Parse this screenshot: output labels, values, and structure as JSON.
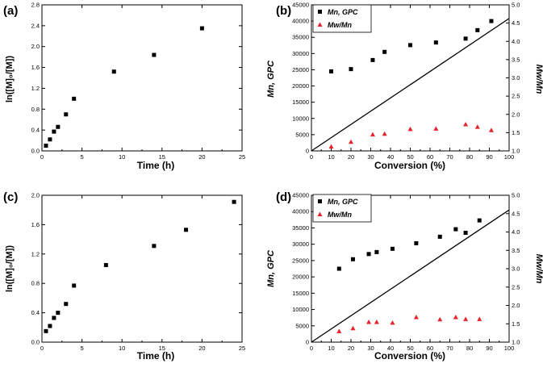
{
  "colors": {
    "square": "#000000",
    "triangle": "#e8212b",
    "line": "#000000",
    "axis": "#000000"
  },
  "chart_data": [
    {
      "type": "scatter",
      "panel_label": "(a)",
      "xlabel": "Time (h)",
      "ylabel": "ln([M]₀/[M])",
      "xlim": [
        0,
        25
      ],
      "ylim": [
        0,
        2.8
      ],
      "xticks": [
        "0",
        "5",
        "10",
        "15",
        "20",
        "25"
      ],
      "yticks": [
        "0.0",
        "0.4",
        "0.8",
        "1.2",
        "1.6",
        "2.0",
        "2.4",
        "2.8"
      ],
      "x": [
        0.5,
        1,
        1.5,
        2,
        3,
        4,
        9,
        14,
        20
      ],
      "y": [
        0.1,
        0.22,
        0.37,
        0.46,
        0.7,
        1.0,
        1.52,
        1.84,
        2.35
      ]
    },
    {
      "type": "scatter",
      "panel_label": "(b)",
      "xlabel": "Conversion (%)",
      "ylabel": "Mn, GPC",
      "y2label": "Mw/Mn",
      "xlim": [
        0,
        100
      ],
      "ylim": [
        0,
        45000
      ],
      "y2lim": [
        1.0,
        5.0
      ],
      "xticks": [
        "0",
        "10",
        "20",
        "30",
        "40",
        "50",
        "60",
        "70",
        "80",
        "90",
        "100"
      ],
      "yticks": [
        "0",
        "5000",
        "10000",
        "15000",
        "20000",
        "25000",
        "30000",
        "35000",
        "40000",
        "45000"
      ],
      "y2ticks": [
        "1.0",
        "1.5",
        "2.0",
        "2.5",
        "3.0",
        "3.5",
        "4.0",
        "4.5",
        "5.0"
      ],
      "legend": [
        "Mn, GPC",
        "Mw/Mn"
      ],
      "series": [
        {
          "name": "Mn, GPC",
          "axis": "left",
          "marker": "square",
          "x": [
            10,
            20,
            31,
            37,
            50,
            63,
            78,
            84,
            91
          ],
          "y": [
            24500,
            25200,
            28000,
            30500,
            32600,
            33400,
            34600,
            37200,
            40000
          ]
        },
        {
          "name": "Mw/Mn",
          "axis": "right",
          "marker": "triangle",
          "x": [
            10,
            20,
            31,
            37,
            50,
            63,
            78,
            84,
            91
          ],
          "y": [
            1.12,
            1.25,
            1.45,
            1.47,
            1.6,
            1.61,
            1.73,
            1.66,
            1.57
          ]
        },
        {
          "name": "theoretical",
          "axis": "left",
          "marker": "line",
          "x": [
            0,
            100
          ],
          "y": [
            0,
            40800
          ]
        }
      ]
    },
    {
      "type": "scatter",
      "panel_label": "(c)",
      "xlabel": "Time (h)",
      "ylabel": "ln([M]₀/[M])",
      "xlim": [
        0,
        25
      ],
      "ylim": [
        0,
        2.0
      ],
      "xticks": [
        "0",
        "5",
        "10",
        "15",
        "20",
        "25"
      ],
      "yticks": [
        "0.0",
        "0.4",
        "0.8",
        "1.2",
        "1.6",
        "2.0"
      ],
      "x": [
        0.5,
        1,
        1.5,
        2,
        3,
        4,
        8,
        14,
        18,
        24
      ],
      "y": [
        0.15,
        0.22,
        0.33,
        0.4,
        0.52,
        0.77,
        1.05,
        1.31,
        1.53,
        1.91
      ]
    },
    {
      "type": "scatter",
      "panel_label": "(d)",
      "xlabel": "Conversion (%)",
      "ylabel": "Mn, GPC",
      "y2label": "Mw/Mn",
      "xlim": [
        0,
        100
      ],
      "ylim": [
        0,
        45000
      ],
      "y2lim": [
        1.0,
        5.0
      ],
      "xticks": [
        "0",
        "10",
        "20",
        "30",
        "40",
        "50",
        "60",
        "70",
        "80",
        "90",
        "100"
      ],
      "yticks": [
        "0",
        "5000",
        "10000",
        "15000",
        "20000",
        "25000",
        "30000",
        "35000",
        "40000",
        "45000"
      ],
      "y2ticks": [
        "1.0",
        "1.5",
        "2.0",
        "2.5",
        "3.0",
        "3.5",
        "4.0",
        "4.5",
        "5.0"
      ],
      "legend": [
        "Mn, GPC",
        "Mw/Mn"
      ],
      "series": [
        {
          "name": "Mn, GPC",
          "axis": "left",
          "marker": "square",
          "x": [
            14,
            21,
            29,
            33,
            41,
            53,
            65,
            73,
            78,
            85
          ],
          "y": [
            22500,
            25400,
            27000,
            27600,
            28600,
            30300,
            32300,
            34600,
            33500,
            37300
          ]
        },
        {
          "name": "Mw/Mn",
          "axis": "right",
          "marker": "triangle",
          "x": [
            14,
            21,
            29,
            33,
            41,
            53,
            65,
            73,
            78,
            85
          ],
          "y": [
            1.3,
            1.38,
            1.55,
            1.55,
            1.53,
            1.68,
            1.62,
            1.68,
            1.63,
            1.63
          ]
        },
        {
          "name": "theoretical",
          "axis": "left",
          "marker": "line",
          "x": [
            0,
            100
          ],
          "y": [
            0,
            40500
          ]
        }
      ]
    }
  ]
}
